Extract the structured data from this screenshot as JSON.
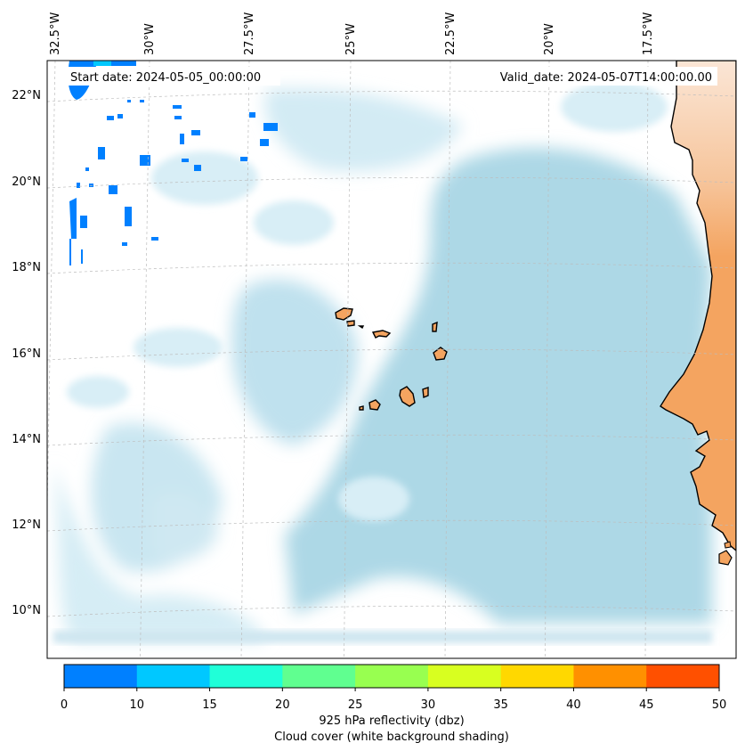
{
  "header": {
    "start_date": "Start date: 2024-05-05_00:00:00",
    "valid_date": "Valid_date: 2024-05-07T14:00:00.00"
  },
  "map": {
    "lon_labels": [
      "32.5°W",
      "30°W",
      "27.5°W",
      "25°W",
      "22.5°W",
      "20°W",
      "17.5°W"
    ],
    "lat_labels": [
      "22°N",
      "20°N",
      "18°N",
      "16°N",
      "14°N",
      "12°N",
      "10°N"
    ],
    "colors": {
      "land": "#f4a460",
      "cloud": "#add8e6",
      "gridline": "#bdbdbd"
    }
  },
  "colorbar": {
    "ticks": [
      "0",
      "10",
      "15",
      "20",
      "25",
      "30",
      "35",
      "40",
      "45",
      "50"
    ],
    "colors": [
      "#0080ff",
      "#00c8ff",
      "#20ffd8",
      "#60ff90",
      "#98ff50",
      "#d8ff20",
      "#ffd800",
      "#ff9000",
      "#ff5000"
    ],
    "label_line1": "925 hPa reflectivity (dbz)",
    "label_line2": "Cloud cover (white background shading)"
  }
}
